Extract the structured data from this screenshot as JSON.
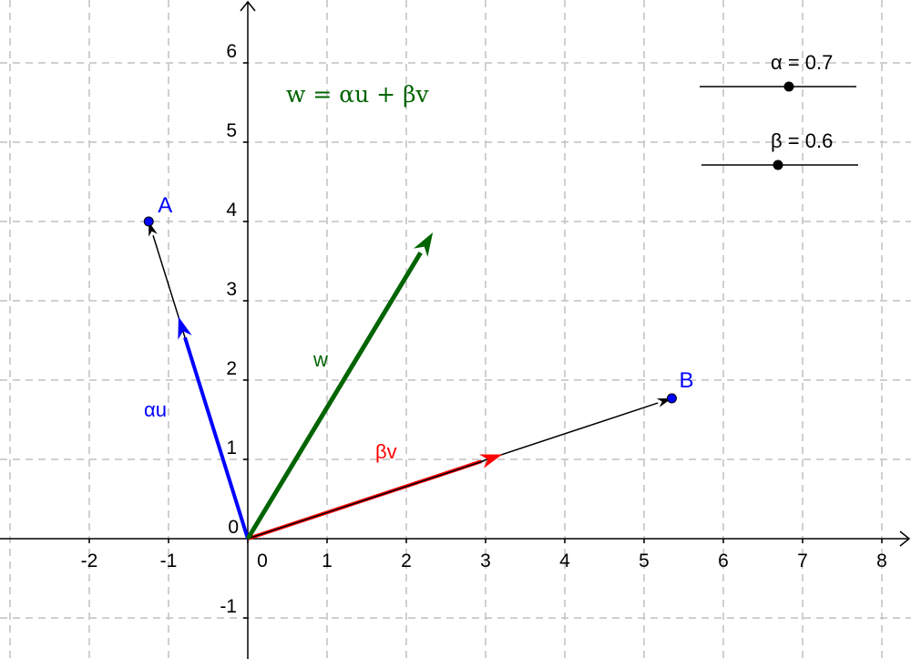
{
  "axes": {
    "x_ticks": [
      -2,
      -1,
      0,
      1,
      2,
      3,
      4,
      5,
      6,
      7,
      8
    ],
    "y_ticks": [
      -1,
      0,
      1,
      2,
      3,
      4,
      5,
      6
    ],
    "grid": true,
    "origin_label": "0"
  },
  "points": {
    "A": {
      "label": "A",
      "x": -1.25,
      "y": 4.0,
      "color": "#0000ff"
    },
    "B": {
      "label": "B",
      "x": 5.35,
      "y": 1.77,
      "color": "#0000ff"
    }
  },
  "sliders": [
    {
      "label": "α = 0.7",
      "value": 0.7
    },
    {
      "label": "β = 0.6",
      "value": 0.6
    }
  ],
  "vectors": {
    "au": {
      "label": "αu",
      "color": "#0000ff"
    },
    "bv": {
      "label": "βv",
      "color": "#ff0000"
    },
    "w": {
      "label": "w",
      "color": "#006400"
    }
  },
  "formula": "w = αu + βv"
}
